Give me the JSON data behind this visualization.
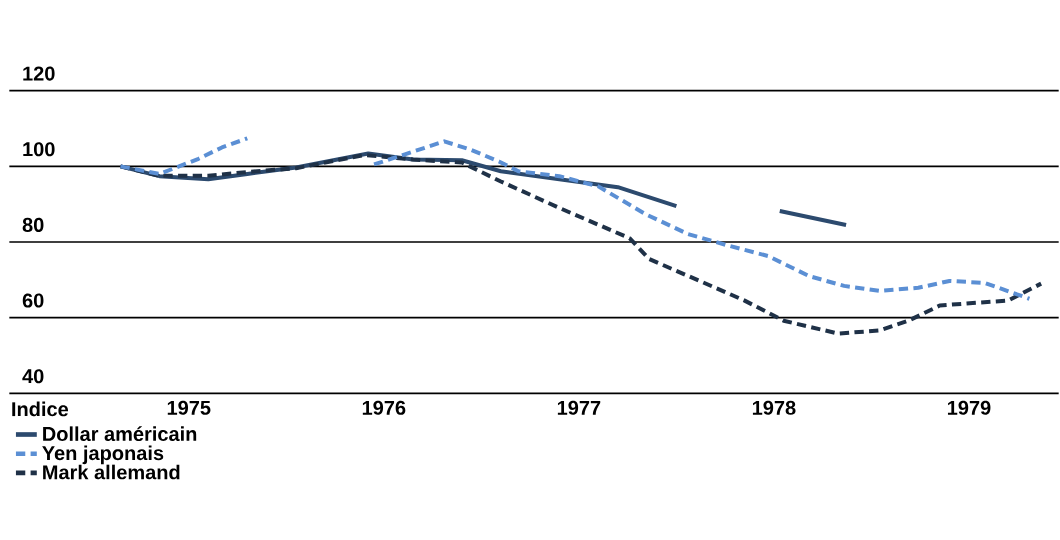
{
  "chart_data": {
    "type": "line",
    "annotations": [
      "Indice"
    ],
    "xlim": [
      1974.08,
      1979.46
    ],
    "xticks": [
      1975,
      1976,
      1977,
      1978,
      1979
    ],
    "ylim": [
      40,
      120
    ],
    "yticks": [
      40,
      60,
      80,
      100,
      120
    ],
    "grid": "y",
    "legend": "bottom",
    "marker": "none",
    "series": [
      {
        "name": "Dollar américain",
        "color": "#2c4a6e",
        "line_style": "solid",
        "x": [
          1974.65,
          1974.85,
          1975.1,
          1975.3,
          1975.55,
          1975.92,
          1976.15,
          1976.4,
          1976.6,
          1976.9,
          1977.2,
          1977.5,
          1977.75,
          1978.03,
          1978.37
        ],
        "values": [
          100,
          97.4,
          96.6,
          98,
          99.7,
          103.4,
          101.8,
          101.6,
          98.7,
          96.6,
          94.5,
          89.5,
          null,
          88.2,
          84.5
        ]
      },
      {
        "name": "Yen japonais",
        "color": "#5b8fd4",
        "line_style": "dashed",
        "x": [
          1974.65,
          1974.85,
          1975.05,
          1975.17,
          1975.3,
          1975.6,
          1975.95,
          1976.31,
          1976.44,
          1976.59,
          1976.69,
          1976.9,
          1977.1,
          1977.34,
          1977.56,
          1977.77,
          1977.97,
          1978.18,
          1978.36,
          1978.54,
          1978.74,
          1978.9,
          1979.08,
          1979.31
        ],
        "values": [
          100,
          98,
          102,
          105,
          107.4,
          null,
          100.5,
          106.6,
          104.5,
          101.3,
          98.7,
          97.4,
          94.7,
          87.4,
          82.1,
          79,
          76.3,
          71,
          68.4,
          67.1,
          67.9,
          69.7,
          69.2,
          65
        ]
      },
      {
        "name": "Mark allemand",
        "color": "#1f3147",
        "line_style": "dashed",
        "x": [
          1974.65,
          1974.85,
          1975.1,
          1975.3,
          1975.55,
          1975.9,
          1976.15,
          1976.4,
          1976.6,
          1976.9,
          1977.26,
          1977.36,
          1977.62,
          1977.85,
          1978.05,
          1978.33,
          1978.54,
          1978.69,
          1978.85,
          1979.05,
          1979.2,
          1979.37
        ],
        "values": [
          100,
          97.5,
          97.5,
          98.5,
          99.5,
          103,
          101.8,
          101,
          96,
          89,
          81,
          75.5,
          69.7,
          64.5,
          59.2,
          55.8,
          56.6,
          59.2,
          63.2,
          64,
          64.5,
          69
        ]
      }
    ]
  }
}
